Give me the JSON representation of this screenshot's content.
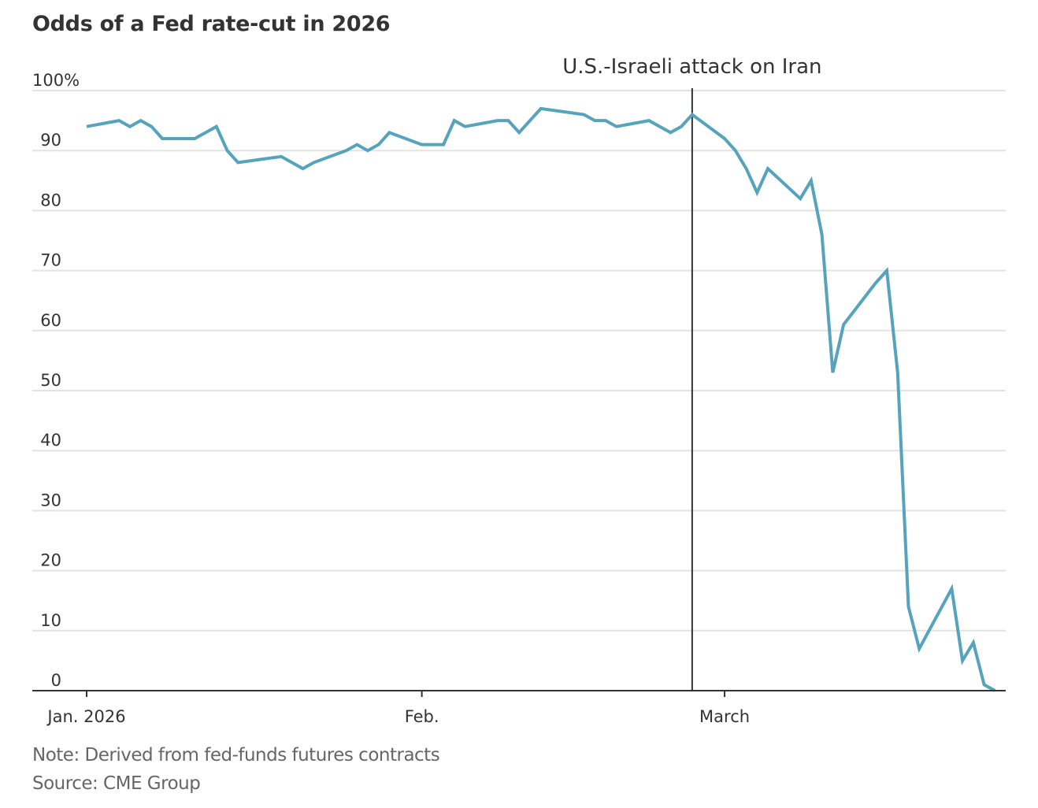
{
  "chart_data": {
    "type": "line",
    "title": "Odds of a Fed rate-cut in 2026",
    "xlabel": "",
    "ylabel": "",
    "ylim": [
      0,
      100
    ],
    "yticks": [
      0,
      10,
      20,
      30,
      40,
      50,
      60,
      70,
      80,
      90,
      100
    ],
    "ytick_labels": [
      "0",
      "10",
      "20",
      "30",
      "40",
      "50",
      "60",
      "70",
      "80",
      "90",
      "100%"
    ],
    "grid": true,
    "x_unit": "days since Jan. 1, 2026",
    "xlim": [
      0,
      84
    ],
    "xticks": [
      {
        "day": 0,
        "label": "Jan. 2026"
      },
      {
        "day": 31,
        "label": "Feb."
      },
      {
        "day": 59,
        "label": "March"
      }
    ],
    "annotations": [
      {
        "day": 56,
        "label": "U.S.-Israeli attack on Iran",
        "type": "vertical-line"
      }
    ],
    "series": [
      {
        "name": "Odds of a Fed rate-cut",
        "color": "#56a3bd",
        "points": [
          {
            "day": 0,
            "value": 94
          },
          {
            "day": 3,
            "value": 95
          },
          {
            "day": 4,
            "value": 94
          },
          {
            "day": 5,
            "value": 95
          },
          {
            "day": 6,
            "value": 94
          },
          {
            "day": 7,
            "value": 92
          },
          {
            "day": 10,
            "value": 92
          },
          {
            "day": 12,
            "value": 94
          },
          {
            "day": 13,
            "value": 90
          },
          {
            "day": 14,
            "value": 88
          },
          {
            "day": 18,
            "value": 89
          },
          {
            "day": 20,
            "value": 87
          },
          {
            "day": 21,
            "value": 88
          },
          {
            "day": 24,
            "value": 90
          },
          {
            "day": 25,
            "value": 91
          },
          {
            "day": 26,
            "value": 90
          },
          {
            "day": 27,
            "value": 91
          },
          {
            "day": 28,
            "value": 93
          },
          {
            "day": 31,
            "value": 91
          },
          {
            "day": 33,
            "value": 91
          },
          {
            "day": 34,
            "value": 95
          },
          {
            "day": 35,
            "value": 94
          },
          {
            "day": 38,
            "value": 95
          },
          {
            "day": 39,
            "value": 95
          },
          {
            "day": 40,
            "value": 93
          },
          {
            "day": 42,
            "value": 97
          },
          {
            "day": 46,
            "value": 96
          },
          {
            "day": 47,
            "value": 95
          },
          {
            "day": 48,
            "value": 95
          },
          {
            "day": 49,
            "value": 94
          },
          {
            "day": 52,
            "value": 95
          },
          {
            "day": 54,
            "value": 93
          },
          {
            "day": 55,
            "value": 94
          },
          {
            "day": 56,
            "value": 96
          },
          {
            "day": 59,
            "value": 92
          },
          {
            "day": 60,
            "value": 90
          },
          {
            "day": 61,
            "value": 87
          },
          {
            "day": 62,
            "value": 83
          },
          {
            "day": 63,
            "value": 87
          },
          {
            "day": 66,
            "value": 82
          },
          {
            "day": 67,
            "value": 85
          },
          {
            "day": 68,
            "value": 76
          },
          {
            "day": 69,
            "value": 53
          },
          {
            "day": 70,
            "value": 61
          },
          {
            "day": 73,
            "value": 68
          },
          {
            "day": 74,
            "value": 70
          },
          {
            "day": 75,
            "value": 53
          },
          {
            "day": 76,
            "value": 14
          },
          {
            "day": 77,
            "value": 7
          },
          {
            "day": 80,
            "value": 17
          },
          {
            "day": 81,
            "value": 5
          },
          {
            "day": 82,
            "value": 8
          },
          {
            "day": 83,
            "value": 1
          },
          {
            "day": 84,
            "value": 0
          }
        ]
      }
    ]
  },
  "footer": {
    "note": "Note: Derived from fed-funds futures contracts",
    "source": "Source: CME Group"
  }
}
